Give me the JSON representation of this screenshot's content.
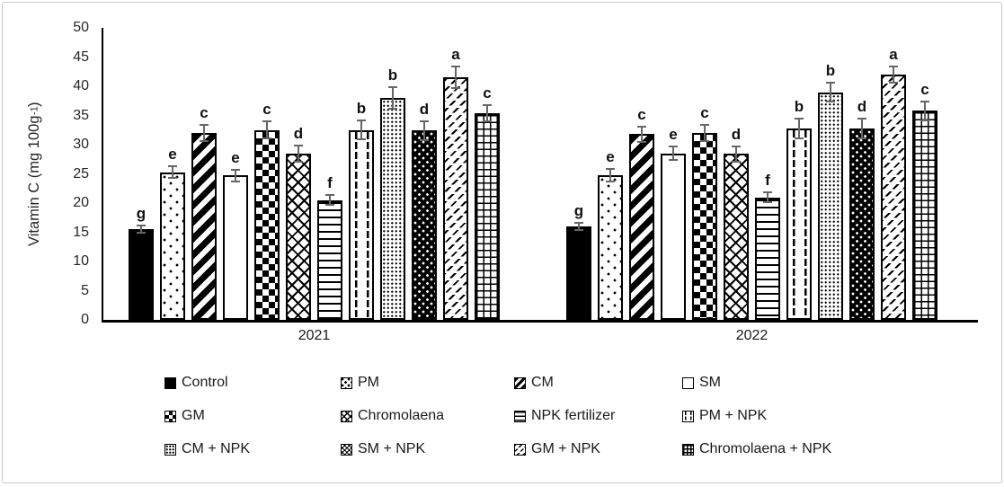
{
  "figure": {
    "y_axis": {
      "label_prefix": "Vitamin C (mg 100g",
      "label_sup": "-1",
      "label_suffix": ")",
      "ticks": [
        0,
        5,
        10,
        15,
        20,
        25,
        30,
        35,
        40,
        45,
        50
      ]
    },
    "colors": {
      "bar_fill": "#000000",
      "bar_background": "#ffffff",
      "error_bar": "#666666",
      "axis": "#000000",
      "text": "#262626",
      "frame_border": "#c9c9c9"
    }
  },
  "chart_data": {
    "type": "bar",
    "title": "",
    "xlabel": "",
    "ylabel": "Vitamin C (mg 100g-1)",
    "ylim": [
      0,
      50
    ],
    "ytick_step": 5,
    "grid": false,
    "legend_position": "bottom",
    "categories": [
      "2021",
      "2022"
    ],
    "series": [
      {
        "name": "Control",
        "pattern": "solid-black",
        "values": [
          15.5,
          16.0
        ],
        "errors": [
          0.8,
          0.8
        ],
        "sig_letters": [
          "g",
          "g"
        ]
      },
      {
        "name": "PM",
        "pattern": "dots-sparse",
        "values": [
          25.3,
          24.8
        ],
        "errors": [
          1.2,
          1.2
        ],
        "sig_letters": [
          "e",
          "e"
        ]
      },
      {
        "name": "CM",
        "pattern": "diag-wide",
        "values": [
          32.0,
          31.8
        ],
        "errors": [
          1.5,
          1.5
        ],
        "sig_letters": [
          "c",
          "c"
        ]
      },
      {
        "name": "SM",
        "pattern": "plain-white",
        "values": [
          24.7,
          28.5
        ],
        "errors": [
          1.2,
          1.3
        ],
        "sig_letters": [
          "e",
          "e"
        ]
      },
      {
        "name": "GM",
        "pattern": "checker",
        "values": [
          32.5,
          32.0
        ],
        "errors": [
          1.6,
          1.5
        ],
        "sig_letters": [
          "c",
          "c"
        ]
      },
      {
        "name": "Chromolaena",
        "pattern": "crosshatch-diamond",
        "values": [
          28.5,
          28.4
        ],
        "errors": [
          1.5,
          1.5
        ],
        "sig_letters": [
          "d",
          "d"
        ]
      },
      {
        "name": "NPK fertilizer",
        "pattern": "h-lines",
        "values": [
          20.5,
          21.0
        ],
        "errors": [
          1.0,
          1.0
        ],
        "sig_letters": [
          "f",
          "f"
        ]
      },
      {
        "name": "PM + NPK",
        "pattern": "v-dashes",
        "values": [
          32.5,
          32.8
        ],
        "errors": [
          1.8,
          1.8
        ],
        "sig_letters": [
          "b",
          "b"
        ]
      },
      {
        "name": "CM + NPK",
        "pattern": "dots-dense",
        "values": [
          38.0,
          39.0
        ],
        "errors": [
          2.0,
          1.8
        ],
        "sig_letters": [
          "b",
          "b"
        ]
      },
      {
        "name": "SM + NPK",
        "pattern": "black-white-dots",
        "values": [
          32.4,
          32.8
        ],
        "errors": [
          1.8,
          1.8
        ],
        "sig_letters": [
          "d",
          "d"
        ]
      },
      {
        "name": "GM + NPK",
        "pattern": "diag-thin",
        "values": [
          41.6,
          42.0
        ],
        "errors": [
          2.0,
          1.5
        ],
        "sig_letters": [
          "a",
          "a"
        ]
      },
      {
        "name": "Chromolaena + NPK",
        "pattern": "grid",
        "values": [
          35.4,
          35.8
        ],
        "errors": [
          1.5,
          1.8
        ],
        "sig_letters": [
          "c",
          "c"
        ]
      }
    ]
  }
}
